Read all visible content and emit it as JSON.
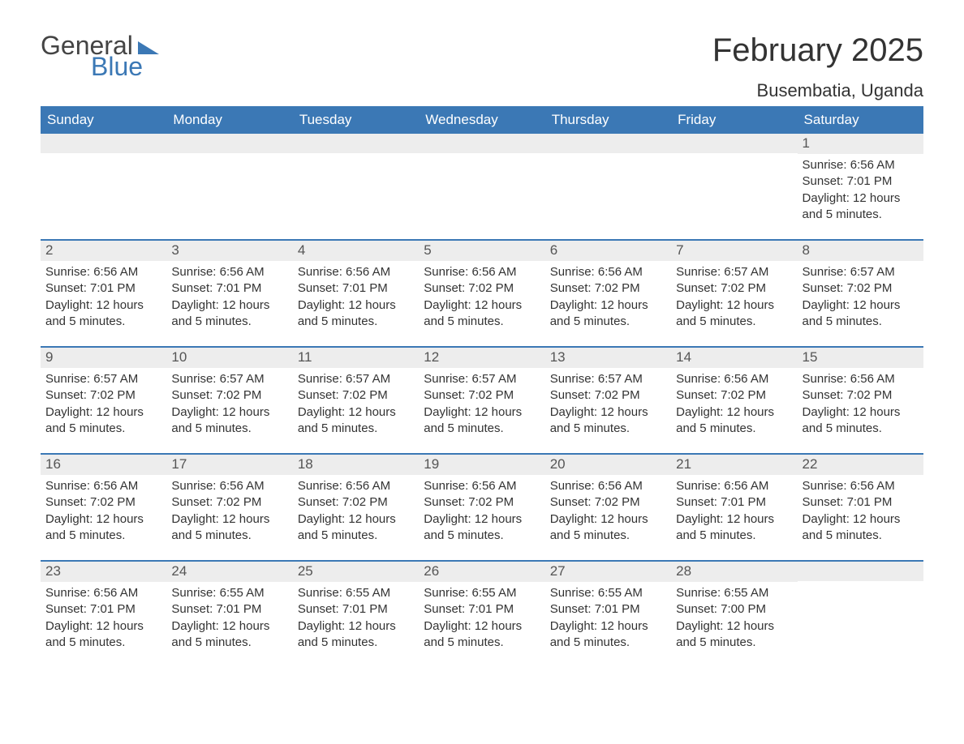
{
  "brand": {
    "general": "General",
    "blue": "Blue",
    "general_color": "#444444",
    "blue_color": "#3b78b5"
  },
  "title": "February 2025",
  "subtitle": "Busembatia, Uganda",
  "colors": {
    "header_bg": "#3b78b5",
    "header_text": "#ffffff",
    "daynum_bg": "#ededed",
    "week_border": "#3b78b5",
    "body_text": "#333333",
    "background": "#ffffff"
  },
  "fonts": {
    "family": "Arial",
    "title_size_pt": 30,
    "subtitle_size_pt": 16,
    "weekday_size_pt": 13,
    "daynum_size_pt": 13,
    "body_size_pt": 11
  },
  "weekdays": [
    "Sunday",
    "Monday",
    "Tuesday",
    "Wednesday",
    "Thursday",
    "Friday",
    "Saturday"
  ],
  "weeks": [
    [
      {
        "empty": true
      },
      {
        "empty": true
      },
      {
        "empty": true
      },
      {
        "empty": true
      },
      {
        "empty": true
      },
      {
        "empty": true
      },
      {
        "num": "1",
        "sunrise": "Sunrise: 6:56 AM",
        "sunset": "Sunset: 7:01 PM",
        "daylight": "Daylight: 12 hours and 5 minutes."
      }
    ],
    [
      {
        "num": "2",
        "sunrise": "Sunrise: 6:56 AM",
        "sunset": "Sunset: 7:01 PM",
        "daylight": "Daylight: 12 hours and 5 minutes."
      },
      {
        "num": "3",
        "sunrise": "Sunrise: 6:56 AM",
        "sunset": "Sunset: 7:01 PM",
        "daylight": "Daylight: 12 hours and 5 minutes."
      },
      {
        "num": "4",
        "sunrise": "Sunrise: 6:56 AM",
        "sunset": "Sunset: 7:01 PM",
        "daylight": "Daylight: 12 hours and 5 minutes."
      },
      {
        "num": "5",
        "sunrise": "Sunrise: 6:56 AM",
        "sunset": "Sunset: 7:02 PM",
        "daylight": "Daylight: 12 hours and 5 minutes."
      },
      {
        "num": "6",
        "sunrise": "Sunrise: 6:56 AM",
        "sunset": "Sunset: 7:02 PM",
        "daylight": "Daylight: 12 hours and 5 minutes."
      },
      {
        "num": "7",
        "sunrise": "Sunrise: 6:57 AM",
        "sunset": "Sunset: 7:02 PM",
        "daylight": "Daylight: 12 hours and 5 minutes."
      },
      {
        "num": "8",
        "sunrise": "Sunrise: 6:57 AM",
        "sunset": "Sunset: 7:02 PM",
        "daylight": "Daylight: 12 hours and 5 minutes."
      }
    ],
    [
      {
        "num": "9",
        "sunrise": "Sunrise: 6:57 AM",
        "sunset": "Sunset: 7:02 PM",
        "daylight": "Daylight: 12 hours and 5 minutes."
      },
      {
        "num": "10",
        "sunrise": "Sunrise: 6:57 AM",
        "sunset": "Sunset: 7:02 PM",
        "daylight": "Daylight: 12 hours and 5 minutes."
      },
      {
        "num": "11",
        "sunrise": "Sunrise: 6:57 AM",
        "sunset": "Sunset: 7:02 PM",
        "daylight": "Daylight: 12 hours and 5 minutes."
      },
      {
        "num": "12",
        "sunrise": "Sunrise: 6:57 AM",
        "sunset": "Sunset: 7:02 PM",
        "daylight": "Daylight: 12 hours and 5 minutes."
      },
      {
        "num": "13",
        "sunrise": "Sunrise: 6:57 AM",
        "sunset": "Sunset: 7:02 PM",
        "daylight": "Daylight: 12 hours and 5 minutes."
      },
      {
        "num": "14",
        "sunrise": "Sunrise: 6:56 AM",
        "sunset": "Sunset: 7:02 PM",
        "daylight": "Daylight: 12 hours and 5 minutes."
      },
      {
        "num": "15",
        "sunrise": "Sunrise: 6:56 AM",
        "sunset": "Sunset: 7:02 PM",
        "daylight": "Daylight: 12 hours and 5 minutes."
      }
    ],
    [
      {
        "num": "16",
        "sunrise": "Sunrise: 6:56 AM",
        "sunset": "Sunset: 7:02 PM",
        "daylight": "Daylight: 12 hours and 5 minutes."
      },
      {
        "num": "17",
        "sunrise": "Sunrise: 6:56 AM",
        "sunset": "Sunset: 7:02 PM",
        "daylight": "Daylight: 12 hours and 5 minutes."
      },
      {
        "num": "18",
        "sunrise": "Sunrise: 6:56 AM",
        "sunset": "Sunset: 7:02 PM",
        "daylight": "Daylight: 12 hours and 5 minutes."
      },
      {
        "num": "19",
        "sunrise": "Sunrise: 6:56 AM",
        "sunset": "Sunset: 7:02 PM",
        "daylight": "Daylight: 12 hours and 5 minutes."
      },
      {
        "num": "20",
        "sunrise": "Sunrise: 6:56 AM",
        "sunset": "Sunset: 7:02 PM",
        "daylight": "Daylight: 12 hours and 5 minutes."
      },
      {
        "num": "21",
        "sunrise": "Sunrise: 6:56 AM",
        "sunset": "Sunset: 7:01 PM",
        "daylight": "Daylight: 12 hours and 5 minutes."
      },
      {
        "num": "22",
        "sunrise": "Sunrise: 6:56 AM",
        "sunset": "Sunset: 7:01 PM",
        "daylight": "Daylight: 12 hours and 5 minutes."
      }
    ],
    [
      {
        "num": "23",
        "sunrise": "Sunrise: 6:56 AM",
        "sunset": "Sunset: 7:01 PM",
        "daylight": "Daylight: 12 hours and 5 minutes."
      },
      {
        "num": "24",
        "sunrise": "Sunrise: 6:55 AM",
        "sunset": "Sunset: 7:01 PM",
        "daylight": "Daylight: 12 hours and 5 minutes."
      },
      {
        "num": "25",
        "sunrise": "Sunrise: 6:55 AM",
        "sunset": "Sunset: 7:01 PM",
        "daylight": "Daylight: 12 hours and 5 minutes."
      },
      {
        "num": "26",
        "sunrise": "Sunrise: 6:55 AM",
        "sunset": "Sunset: 7:01 PM",
        "daylight": "Daylight: 12 hours and 5 minutes."
      },
      {
        "num": "27",
        "sunrise": "Sunrise: 6:55 AM",
        "sunset": "Sunset: 7:01 PM",
        "daylight": "Daylight: 12 hours and 5 minutes."
      },
      {
        "num": "28",
        "sunrise": "Sunrise: 6:55 AM",
        "sunset": "Sunset: 7:00 PM",
        "daylight": "Daylight: 12 hours and 5 minutes."
      },
      {
        "empty": true
      }
    ]
  ]
}
